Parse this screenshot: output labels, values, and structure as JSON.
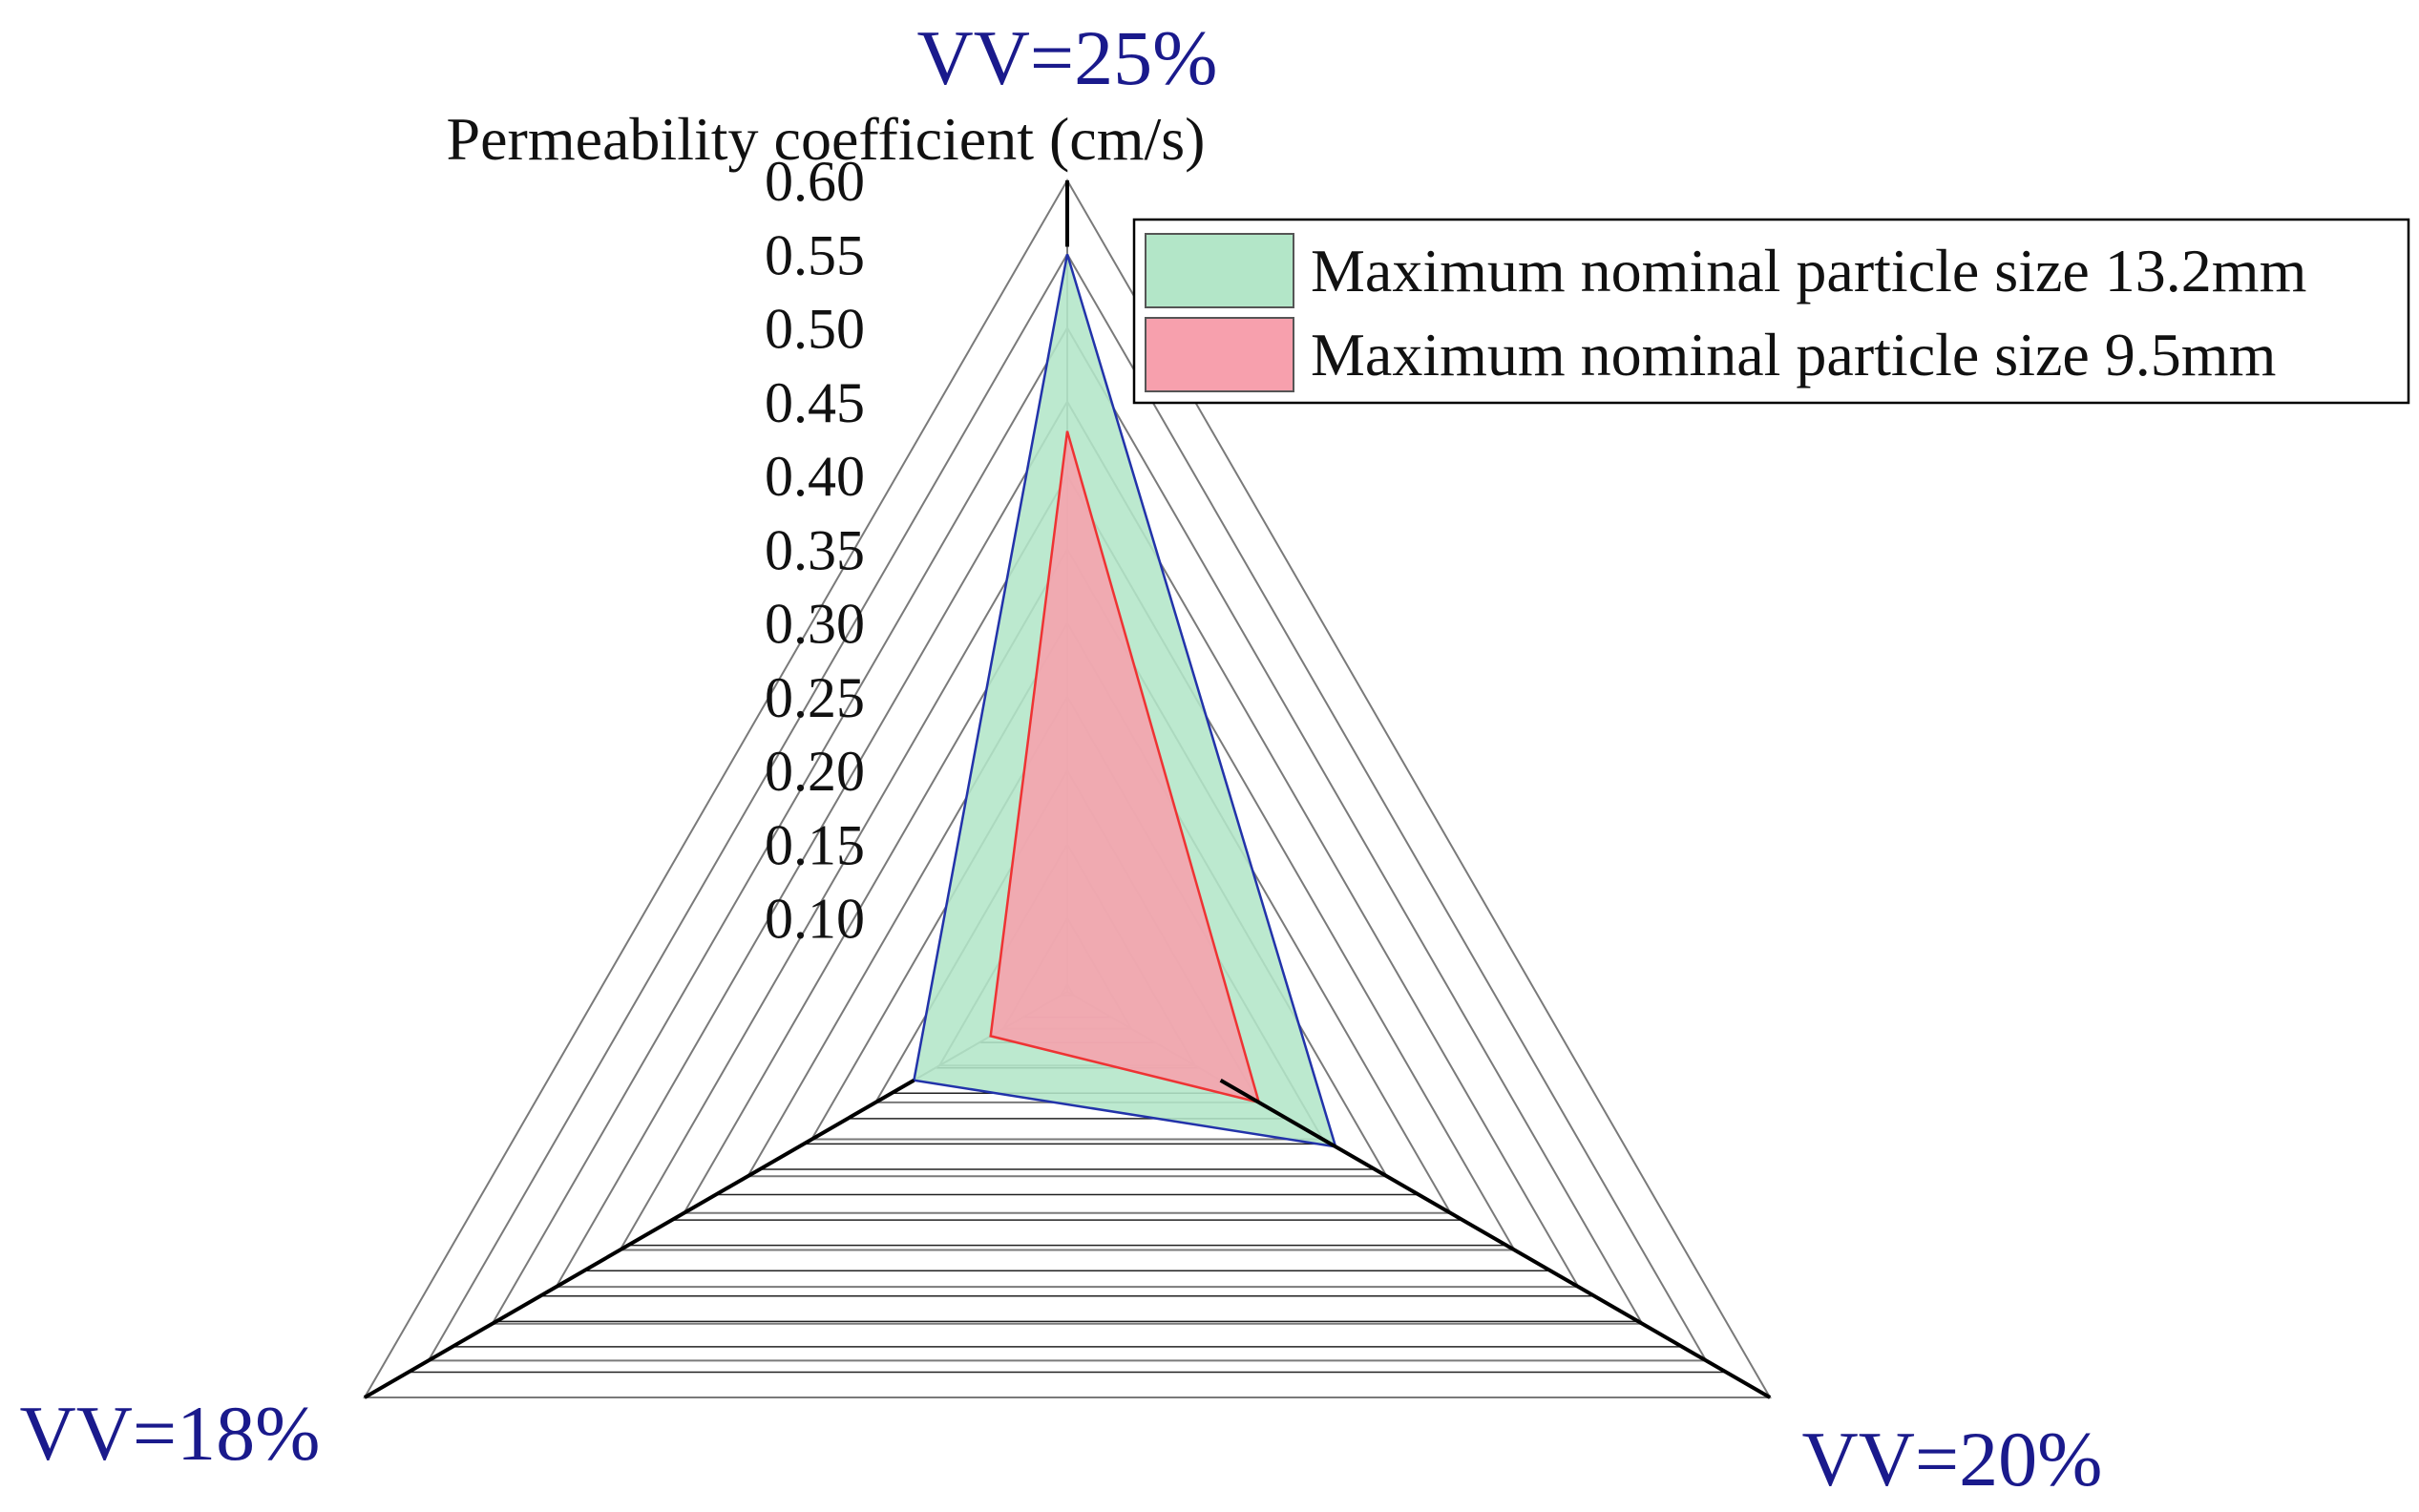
{
  "chart_data": {
    "type": "radar",
    "axis_title": "Permeability coefficient (cm/s)",
    "categories": [
      "VV=25%",
      "VV=20%",
      "VV=18%"
    ],
    "rmin": 0.05,
    "rmax": 0.6,
    "ticks": [
      "0.10",
      "0.15",
      "0.20",
      "0.25",
      "0.30",
      "0.35",
      "0.40",
      "0.45",
      "0.50",
      "0.55",
      "0.60"
    ],
    "tick_values": [
      0.1,
      0.15,
      0.2,
      0.25,
      0.3,
      0.35,
      0.4,
      0.45,
      0.5,
      0.55,
      0.6
    ],
    "series": [
      {
        "name": "Maximum nominal particle size 13.2mm",
        "values": [
          0.55,
          0.26,
          0.17
        ],
        "fill": "#b3e6c8",
        "stroke": "#2233aa"
      },
      {
        "name": "Maximum nominal particle size 9.5mm",
        "values": [
          0.43,
          0.2,
          0.11
        ],
        "fill": "#f7a0ad",
        "stroke": "#ee3333"
      }
    ],
    "grid": true,
    "legend_position": "top-right"
  }
}
